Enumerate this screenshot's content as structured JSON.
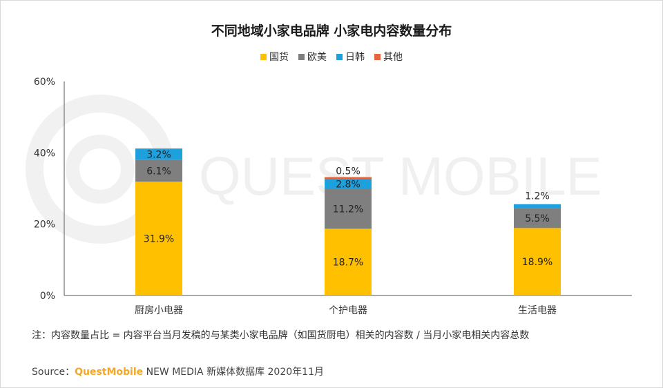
{
  "chart_data": {
    "type": "bar",
    "stacked": true,
    "title": "不同地域小家电品牌 小家电内容数量分布",
    "categories": [
      "厨房小电器",
      "个护电器",
      "生活电器"
    ],
    "series": [
      {
        "name": "国货",
        "color": "#ffc000",
        "values": [
          31.9,
          18.7,
          18.9
        ],
        "labels": [
          "31.9%",
          "18.7%",
          "18.9%"
        ]
      },
      {
        "name": "欧美",
        "color": "#7f7f7f",
        "values": [
          6.1,
          11.2,
          5.5
        ],
        "labels": [
          "6.1%",
          "11.2%",
          "5.5%"
        ]
      },
      {
        "name": "日韩",
        "color": "#1ea0dc",
        "values": [
          3.2,
          2.8,
          1.2
        ],
        "labels": [
          "3.2%",
          "2.8%",
          "1.2%"
        ]
      },
      {
        "name": "其他",
        "color": "#e8643c",
        "values": [
          0,
          0.5,
          0
        ],
        "labels": [
          "",
          "0.5%",
          ""
        ]
      }
    ],
    "ylim": [
      0,
      60
    ],
    "yticks": [
      "0%",
      "20%",
      "40%",
      "60%"
    ],
    "xlabel": "",
    "ylabel": "",
    "legend": "top-center",
    "grid": false
  },
  "note": "注：内容数量占比 = 内容平台当月发稿的与某类小家电品牌（如国货厨电）相关的内容数 / 当月小家电相关内容总数",
  "source": {
    "prefix": "Source：",
    "brand": "QuestMobile",
    "suffix": " NEW MEDIA 新媒体数据库 2020年11月"
  },
  "watermark": "QUEST MOBILE"
}
